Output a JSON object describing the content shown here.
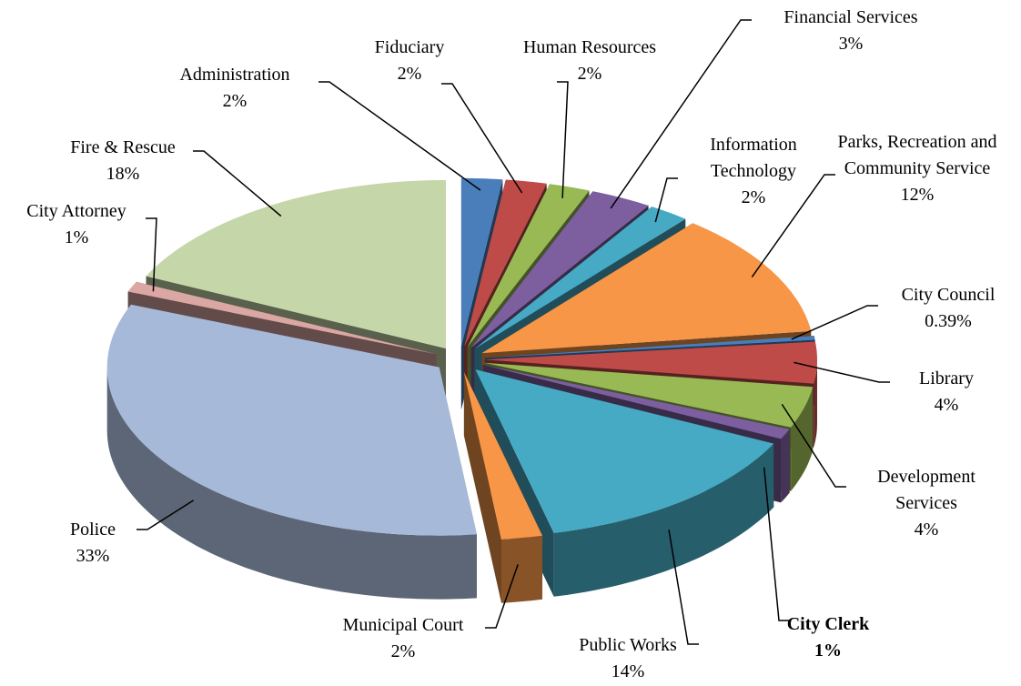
{
  "chart_data": {
    "type": "pie",
    "categories": [
      "Administration",
      "Fiduciary",
      "Human Resources",
      "Financial Services",
      "Information Technology",
      "Parks, Recreation and Community Service",
      "City Council",
      "Library",
      "Development Services",
      "City Clerk",
      "Public Works",
      "Municipal Court",
      "Police",
      "City Attorney",
      "Fire & Rescue"
    ],
    "values": [
      2,
      2,
      2,
      3,
      2,
      12,
      0.39,
      4,
      4,
      1,
      14,
      2,
      33,
      1,
      18
    ],
    "value_labels": [
      "2%",
      "2%",
      "2%",
      "3%",
      "2%",
      "12%",
      "0.39%",
      "4%",
      "4%",
      "1%",
      "14%",
      "2%",
      "33%",
      "1%",
      "18%"
    ],
    "colors": [
      "#4a7ebb",
      "#be4b48",
      "#98b954",
      "#7d5fa0",
      "#46aac5",
      "#f79646",
      "#4a7ebb",
      "#be4b48",
      "#98b954",
      "#7d5fa0",
      "#46aac5",
      "#f79646",
      "#a7b9d9",
      "#dba7a5",
      "#c5d6a8"
    ]
  }
}
